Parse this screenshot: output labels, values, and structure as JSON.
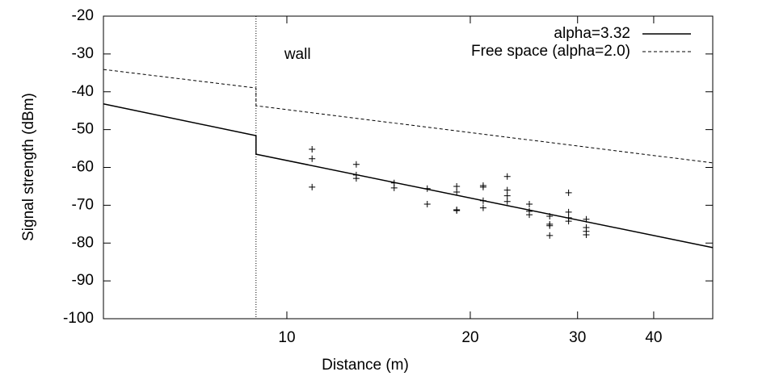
{
  "chart_data": {
    "type": "line",
    "xlabel": "Distance (m)",
    "ylabel": "Signal strength (dBm)",
    "xscale": "log",
    "xlim": [
      5,
      50
    ],
    "xticks": [
      10,
      20,
      30,
      40
    ],
    "ylim": [
      -100,
      -20
    ],
    "yticks": [
      -20,
      -30,
      -40,
      -50,
      -60,
      -70,
      -80,
      -90,
      -100
    ],
    "legend": "upper right",
    "annotation": {
      "text": "wall",
      "x": 8.9
    },
    "series": [
      {
        "name": "alpha=3.32",
        "type": "line",
        "color": "#000000",
        "dash": false,
        "x": [
          5,
          8.9,
          8.9,
          50
        ],
        "values": [
          -43.2,
          -51.6,
          -56.5,
          -81.2
        ]
      },
      {
        "name": "Free space (alpha=2.0)",
        "type": "line",
        "color": "#000000",
        "dash": true,
        "x": [
          5,
          8.9,
          8.9,
          50
        ],
        "values": [
          -34.1,
          -39,
          -43.7,
          -58.8
        ]
      },
      {
        "type": "scatter",
        "color": "#000000",
        "x": [
          11,
          11,
          11,
          13,
          13,
          13,
          15,
          15,
          17,
          17,
          19,
          19,
          19,
          19,
          21,
          21,
          21,
          21,
          23,
          23,
          23,
          23,
          25,
          25,
          25,
          27,
          27,
          27,
          27,
          29,
          29,
          29,
          29,
          31,
          31,
          31,
          31
        ],
        "values": [
          -55.2,
          -57.7,
          -65.2,
          -59.2,
          -62,
          -62.9,
          -64.1,
          -65.4,
          -65.6,
          -69.7,
          -65,
          -66.5,
          -71.2,
          -71.4,
          -64.8,
          -65.2,
          -68.8,
          -70.7,
          -62.4,
          -66,
          -67.5,
          -69,
          -69.7,
          -71.6,
          -72.5,
          -72.9,
          -75,
          -75.4,
          -78,
          -66.7,
          -71.8,
          -73.3,
          -74.2,
          -73.7,
          -75.9,
          -76.9,
          -77.8
        ]
      }
    ]
  }
}
